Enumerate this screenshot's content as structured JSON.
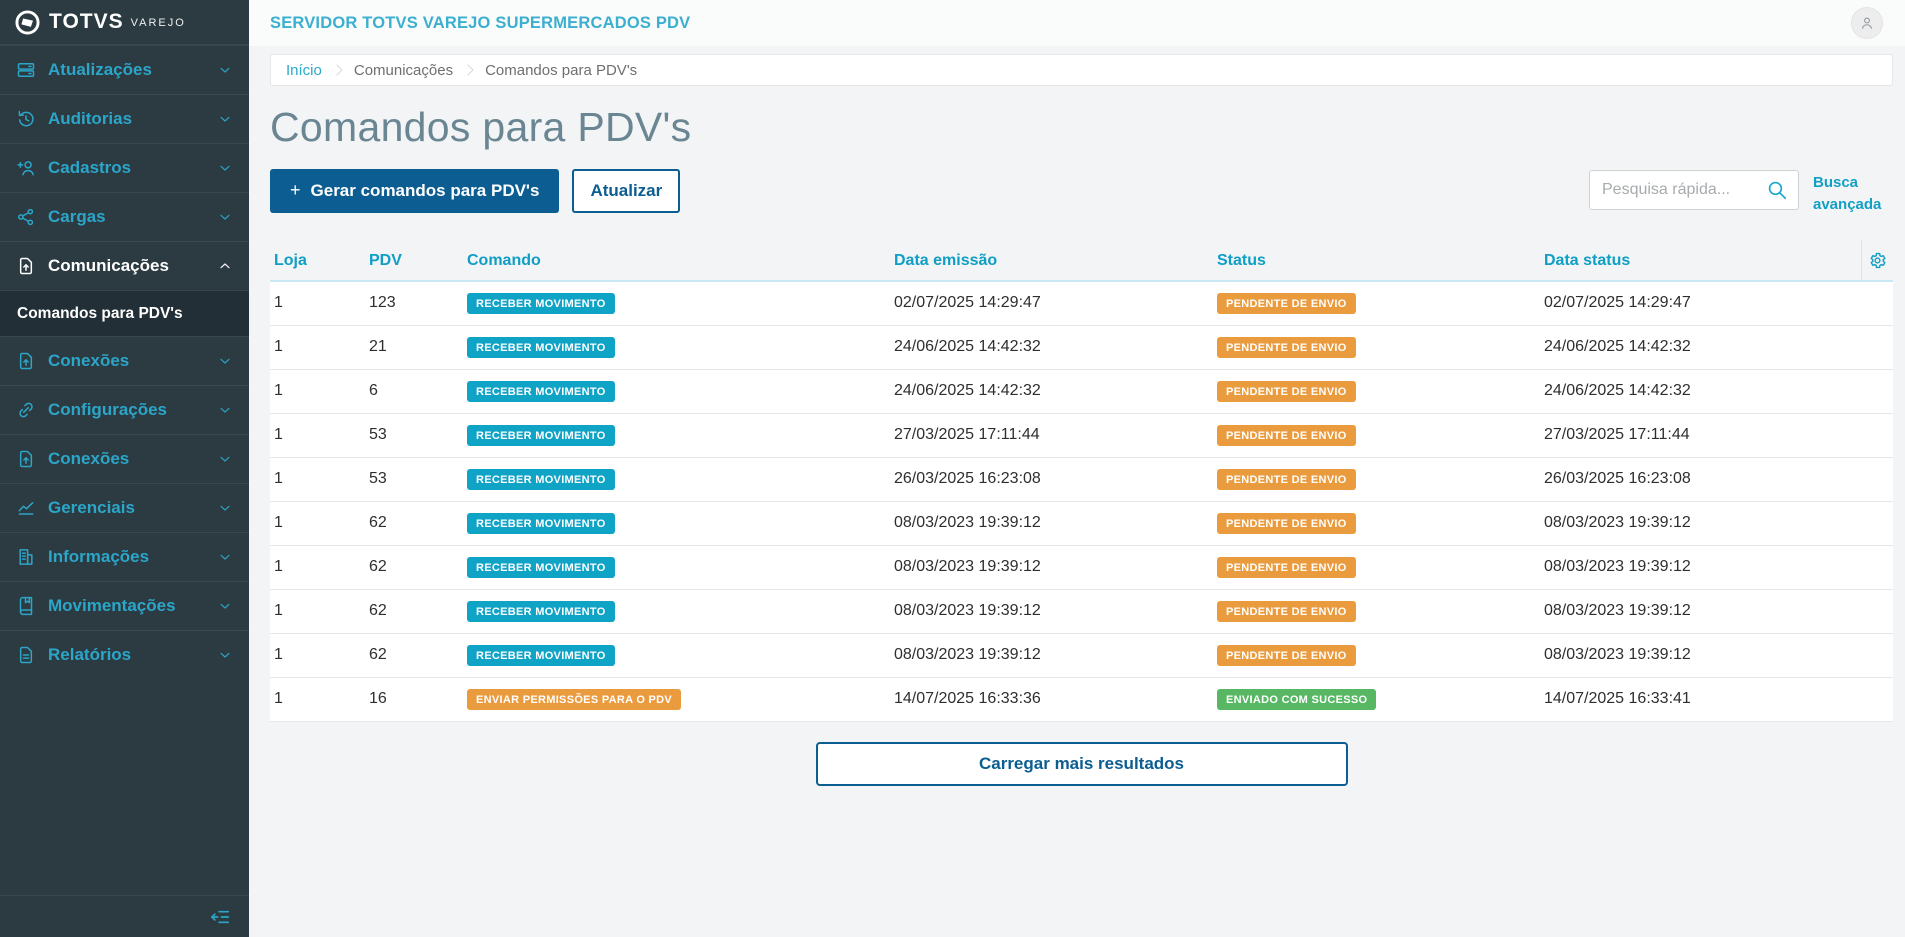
{
  "colors": {
    "sidebar_bg": "#2c3a41",
    "menu_accent": "#2ba6c9",
    "table_accent": "#0f9ec5",
    "primary_blue": "#0b5d92",
    "badge_info": "#0fa3c6",
    "badge_warning": "#ea9b3d",
    "badge_success": "#58b763"
  },
  "brand": {
    "logo_text": "TOTVS",
    "logo_sub": "VAREJO"
  },
  "topbar": {
    "title": "SERVIDOR TOTVS VAREJO SUPERMERCADOS PDV"
  },
  "sidebar": {
    "items": [
      {
        "label": "Atualizações",
        "icon": "server-icon"
      },
      {
        "label": "Auditorias",
        "icon": "history-icon"
      },
      {
        "label": "Cadastros",
        "icon": "user-plus-icon"
      },
      {
        "label": "Cargas",
        "icon": "share-icon"
      },
      {
        "label": "Comunicações",
        "icon": "file-upload-icon",
        "expanded": true,
        "active": true,
        "submenu": [
          {
            "label": "Comandos para PDV's",
            "active": true
          }
        ]
      },
      {
        "label": "Conexões",
        "icon": "file-upload-icon"
      },
      {
        "label": "Configurações",
        "icon": "link-icon"
      },
      {
        "label": "Conexões",
        "icon": "file-upload-icon"
      },
      {
        "label": "Gerenciais",
        "icon": "chart-icon"
      },
      {
        "label": "Informações",
        "icon": "building-icon"
      },
      {
        "label": "Movimentações",
        "icon": "book-icon"
      },
      {
        "label": "Relatórios",
        "icon": "report-icon"
      }
    ]
  },
  "breadcrumb": [
    "Início",
    "Comunicações",
    "Comandos para PDV's"
  ],
  "page_title": "Comandos para PDV's",
  "toolbar": {
    "generate_plus": "+",
    "generate_label": "Gerar comandos para PDV's",
    "refresh_label": "Atualizar",
    "search_placeholder": "Pesquisa rápida...",
    "advanced_search_label": "Busca avançada"
  },
  "table": {
    "columns": [
      "Loja",
      "PDV",
      "Comando",
      "Data emissão",
      "Status",
      "Data status"
    ],
    "rows": [
      {
        "loja": "1",
        "pdv": "123",
        "comando": "RECEBER MOVIMENTO",
        "comando_color": "info",
        "data_emissao": "02/07/2025 14:29:47",
        "status": "PENDENTE DE ENVIO",
        "status_color": "warning",
        "data_status": "02/07/2025 14:29:47"
      },
      {
        "loja": "1",
        "pdv": "21",
        "comando": "RECEBER MOVIMENTO",
        "comando_color": "info",
        "data_emissao": "24/06/2025 14:42:32",
        "status": "PENDENTE DE ENVIO",
        "status_color": "warning",
        "data_status": "24/06/2025 14:42:32"
      },
      {
        "loja": "1",
        "pdv": "6",
        "comando": "RECEBER MOVIMENTO",
        "comando_color": "info",
        "data_emissao": "24/06/2025 14:42:32",
        "status": "PENDENTE DE ENVIO",
        "status_color": "warning",
        "data_status": "24/06/2025 14:42:32"
      },
      {
        "loja": "1",
        "pdv": "53",
        "comando": "RECEBER MOVIMENTO",
        "comando_color": "info",
        "data_emissao": "27/03/2025 17:11:44",
        "status": "PENDENTE DE ENVIO",
        "status_color": "warning",
        "data_status": "27/03/2025 17:11:44"
      },
      {
        "loja": "1",
        "pdv": "53",
        "comando": "RECEBER MOVIMENTO",
        "comando_color": "info",
        "data_emissao": "26/03/2025 16:23:08",
        "status": "PENDENTE DE ENVIO",
        "status_color": "warning",
        "data_status": "26/03/2025 16:23:08"
      },
      {
        "loja": "1",
        "pdv": "62",
        "comando": "RECEBER MOVIMENTO",
        "comando_color": "info",
        "data_emissao": "08/03/2023 19:39:12",
        "status": "PENDENTE DE ENVIO",
        "status_color": "warning",
        "data_status": "08/03/2023 19:39:12"
      },
      {
        "loja": "1",
        "pdv": "62",
        "comando": "RECEBER MOVIMENTO",
        "comando_color": "info",
        "data_emissao": "08/03/2023 19:39:12",
        "status": "PENDENTE DE ENVIO",
        "status_color": "warning",
        "data_status": "08/03/2023 19:39:12"
      },
      {
        "loja": "1",
        "pdv": "62",
        "comando": "RECEBER MOVIMENTO",
        "comando_color": "info",
        "data_emissao": "08/03/2023 19:39:12",
        "status": "PENDENTE DE ENVIO",
        "status_color": "warning",
        "data_status": "08/03/2023 19:39:12"
      },
      {
        "loja": "1",
        "pdv": "62",
        "comando": "RECEBER MOVIMENTO",
        "comando_color": "info",
        "data_emissao": "08/03/2023 19:39:12",
        "status": "PENDENTE DE ENVIO",
        "status_color": "warning",
        "data_status": "08/03/2023 19:39:12"
      },
      {
        "loja": "1",
        "pdv": "16",
        "comando": "ENVIAR PERMISSÕES PARA O PDV",
        "comando_color": "warning",
        "data_emissao": "14/07/2025 16:33:36",
        "status": "ENVIADO COM SUCESSO",
        "status_color": "success",
        "data_status": "14/07/2025 16:33:41"
      }
    ]
  },
  "load_more_label": "Carregar mais resultados"
}
